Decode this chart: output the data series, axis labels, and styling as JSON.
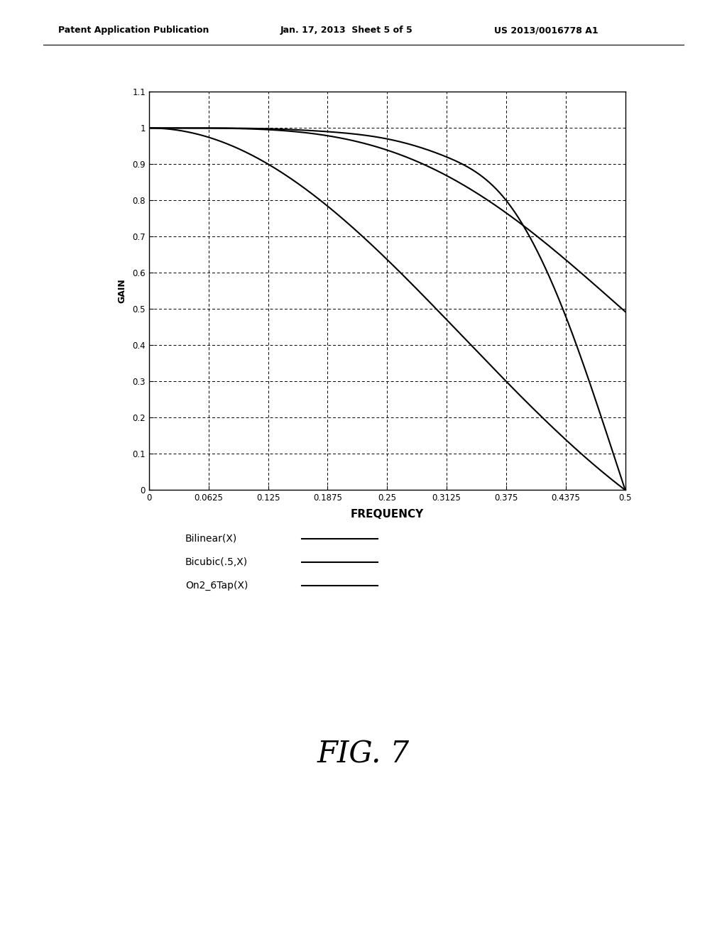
{
  "title": "",
  "xlabel": "FREQUENCY",
  "ylabel": "GAIN",
  "xlim": [
    0,
    0.5
  ],
  "ylim": [
    0,
    1.1
  ],
  "xticks": [
    0,
    0.0625,
    0.125,
    0.1875,
    0.25,
    0.3125,
    0.375,
    0.4375,
    0.5
  ],
  "yticks": [
    0,
    0.1,
    0.2,
    0.3,
    0.4,
    0.5,
    0.6,
    0.7,
    0.8,
    0.9,
    1.0,
    1.1
  ],
  "legend_labels": [
    "Bilinear(X)",
    "Bicubic(.5,X)",
    "On2_6Tap(X)"
  ],
  "header_left": "Patent Application Publication",
  "header_center": "Jan. 17, 2013  Sheet 5 of 5",
  "header_right": "US 2013/0016778 A1",
  "fig_label": "FIG. 7",
  "bg_color": "#ffffff",
  "line_color": "#000000",
  "dashed_grid_color": "#555555",
  "solid_grid_color": "#000000"
}
